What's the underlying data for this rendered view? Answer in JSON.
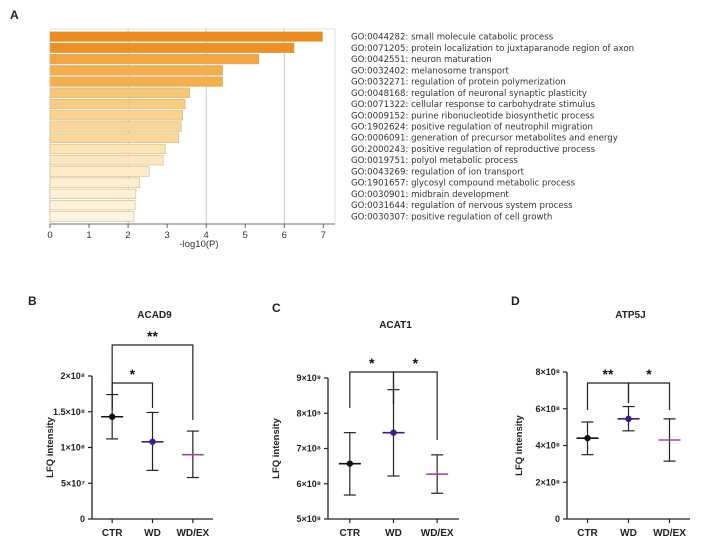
{
  "colors": {
    "bar_gradient": [
      "#ee8a1e",
      "#f08f22",
      "#f3a640",
      "#f4ae4b",
      "#f4ae4b",
      "#f7c777",
      "#f8cd82",
      "#f9d38f",
      "#f9d696",
      "#fad89b",
      "#fbe4b6",
      "#fce7bd",
      "#fcebc7",
      "#fdeed0",
      "#fdf0d6",
      "#fdf2dc",
      "#fef4e2"
    ],
    "bar_stroke": "#c9a96e",
    "ctr": "#111111",
    "wd": "#3f1a8a",
    "wdex": "#a8469e"
  },
  "chart_data": [
    {
      "panel": "A",
      "type": "bar",
      "orientation": "horizontal",
      "xlabel": "-log10(P)",
      "xlim": [
        0,
        7.3
      ],
      "xticks": [
        "0",
        "1",
        "2",
        "3",
        "4",
        "5",
        "6",
        "7"
      ],
      "gridlines": [
        2,
        4,
        6
      ],
      "categories": [
        "GO:0044282: small molecule catabolic process",
        "GO:0071205: protein localization to juxtaparanode region of axon",
        "GO:0042551: neuron maturation",
        "GO:0032402: melanosome transport",
        "GO:0032271: regulation of protein polymerization",
        "GO:0048168: regulation of neuronal synaptic plasticity",
        "GO:0071322: cellular response to carbohydrate stimulus",
        "GO:0009152: purine ribonucleotide biosynthetic process",
        "GO:1902624: positive regulation of neutrophil migration",
        "GO:0006091: generation of precursor metabolites and energy",
        "GO:2000243: positive regulation of reproductive process",
        "GO:0019751: polyol metabolic process",
        "GO:0043269: regulation of ion transport",
        "GO:1901657: glycosyl compound metabolic process",
        "GO:0030901: midbrain development",
        "GO:0031644: regulation of nervous system process",
        "GO:0030307: positive regulation of cell growth"
      ],
      "values": [
        6.98,
        6.25,
        5.35,
        4.42,
        4.42,
        3.58,
        3.46,
        3.4,
        3.36,
        3.3,
        2.95,
        2.9,
        2.54,
        2.3,
        2.2,
        2.18,
        2.15
      ]
    },
    {
      "panel": "B",
      "type": "scatter",
      "title": "ACAD9",
      "ylabel": "LFQ intensity",
      "categories": [
        "CTR",
        "WD",
        "WD/EX"
      ],
      "ylim": [
        0,
        200000000
      ],
      "yticks": [
        0,
        50000000,
        100000000,
        150000000,
        200000000
      ],
      "ytick_labels": [
        "0",
        "5×10⁷",
        "1×10⁸",
        "1.5×10⁸",
        "2×10⁸"
      ],
      "series": [
        {
          "name": "CTR",
          "mean": 143000000,
          "low": 112000000,
          "high": 174000000
        },
        {
          "name": "WD",
          "mean": 108000000,
          "low": 68000000,
          "high": 149000000
        },
        {
          "name": "WD/EX",
          "mean": 90000000,
          "low": 58000000,
          "high": 123000000
        }
      ],
      "significance": [
        {
          "from": "CTR",
          "to": "WD",
          "label": "*"
        },
        {
          "from": "CTR",
          "to": "WD/EX",
          "label": "**"
        }
      ]
    },
    {
      "panel": "C",
      "type": "scatter",
      "title": "ACAT1",
      "ylabel": "LFQ intensity",
      "categories": [
        "CTR",
        "WD",
        "WD/EX"
      ],
      "ylim": [
        500000000,
        900000000
      ],
      "yticks": [
        500000000,
        600000000,
        700000000,
        800000000,
        900000000
      ],
      "ytick_labels": [
        "5×10⁸",
        "6×10⁸",
        "7×10⁸",
        "8×10⁸",
        "9×10⁸"
      ],
      "series": [
        {
          "name": "CTR",
          "mean": 657000000,
          "low": 568000000,
          "high": 745000000
        },
        {
          "name": "WD",
          "mean": 745000000,
          "low": 622000000,
          "high": 867000000
        },
        {
          "name": "WD/EX",
          "mean": 627000000,
          "low": 573000000,
          "high": 682000000
        }
      ],
      "significance": [
        {
          "from": "CTR",
          "to": "WD",
          "label": "*"
        },
        {
          "from": "WD",
          "to": "WD/EX",
          "label": "*"
        }
      ]
    },
    {
      "panel": "D",
      "type": "scatter",
      "title": "ATP5J",
      "ylabel": "LFQ intensity",
      "categories": [
        "CTR",
        "WD",
        "WD/EX"
      ],
      "ylim": [
        0,
        800000000
      ],
      "yticks": [
        0,
        200000000,
        400000000,
        600000000,
        800000000
      ],
      "ytick_labels": [
        "0",
        "2×10⁸",
        "4×10⁸",
        "6×10⁸",
        "8×10⁸"
      ],
      "series": [
        {
          "name": "CTR",
          "mean": 440000000,
          "low": 350000000,
          "high": 528000000
        },
        {
          "name": "WD",
          "mean": 545000000,
          "low": 480000000,
          "high": 612000000
        },
        {
          "name": "WD/EX",
          "mean": 430000000,
          "low": 315000000,
          "high": 545000000
        }
      ],
      "significance": [
        {
          "from": "CTR",
          "to": "WD",
          "label": "**"
        },
        {
          "from": "WD",
          "to": "WD/EX",
          "label": "*"
        }
      ]
    }
  ]
}
